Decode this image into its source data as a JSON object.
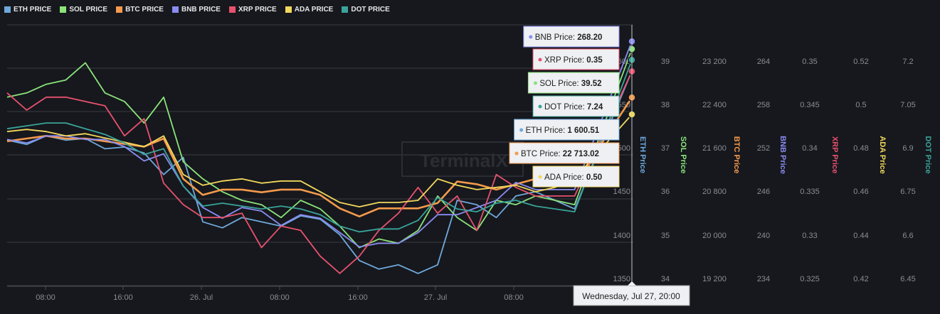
{
  "legend": [
    {
      "label": "ETH PRICE",
      "color": "#6fa8dc"
    },
    {
      "label": "SOL PRICE",
      "color": "#8be37a"
    },
    {
      "label": "BTC PRICE",
      "color": "#f59a4c"
    },
    {
      "label": "BNB PRICE",
      "color": "#8a8cf2"
    },
    {
      "label": "XRP PRICE",
      "color": "#e8516e"
    },
    {
      "label": "ADA PRICE",
      "color": "#f2d85c"
    },
    {
      "label": "DOT PRICE",
      "color": "#3aa39a"
    }
  ],
  "watermark": "TerminalX",
  "crosshair_label": "Wednesday, Jul 27, 20:00",
  "chart_data": {
    "type": "line",
    "x_ticks": [
      "08:00",
      "16:00",
      "26. Jul",
      "08:00",
      "16:00",
      "27. Jul",
      "08:00"
    ],
    "eth_axis_ticks": [
      "1350",
      "1400",
      "1450",
      "1500",
      "1550",
      "1600"
    ],
    "right_axes": [
      {
        "title": "ETH Price",
        "color": "#6fa8dc",
        "ticks": []
      },
      {
        "title": "SOL Price",
        "color": "#8be37a",
        "ticks": [
          "39",
          "38",
          "37",
          "36",
          "35",
          "34"
        ]
      },
      {
        "title": "BTC Price",
        "color": "#f59a4c",
        "ticks": [
          "23 200",
          "22 400",
          "21 600",
          "20 800",
          "20 000",
          "19 200"
        ]
      },
      {
        "title": "BNB Price",
        "color": "#8a8cf2",
        "ticks": [
          "264",
          "258",
          "252",
          "246",
          "240",
          "234"
        ]
      },
      {
        "title": "XRP Price",
        "color": "#e8516e",
        "ticks": [
          "0.35",
          "0.345",
          "0.34",
          "0.335",
          "0.33",
          "0.325"
        ]
      },
      {
        "title": "ADA Price",
        "color": "#f2d85c",
        "ticks": [
          "0.52",
          "0.5",
          "0.48",
          "0.46",
          "0.44",
          "0.42"
        ]
      },
      {
        "title": "DOT Price",
        "color": "#3aa39a",
        "ticks": [
          "7.2",
          "7.05",
          "6.9",
          "6.75",
          "6.6",
          "6.45"
        ]
      }
    ],
    "series": [
      {
        "name": "ETH Price",
        "color": "#6fa8dc",
        "values": [
          1520,
          1515,
          1525,
          1520,
          1522,
          1510,
          1512,
          1505,
          1480,
          1500,
          1425,
          1418,
          1430,
          1425,
          1420,
          1432,
          1428,
          1410,
          1380,
          1370,
          1375,
          1365,
          1375,
          1450,
          1445,
          1430,
          1455,
          1460,
          1450,
          1440,
          1600.51
        ]
      },
      {
        "name": "SOL Price",
        "color": "#8be37a",
        "values": [
          38.4,
          38.5,
          38.7,
          38.8,
          39.2,
          38.5,
          38.3,
          37.8,
          38.4,
          36.9,
          36.5,
          36.2,
          36.0,
          35.9,
          35.6,
          36.0,
          35.8,
          35.4,
          34.9,
          35.1,
          35.0,
          35.3,
          36.1,
          35.6,
          35.3,
          36.0,
          35.9,
          36.1,
          36.0,
          35.9,
          39.52
        ]
      },
      {
        "name": "BTC Price",
        "color": "#f59a4c",
        "values": [
          21900,
          21950,
          22000,
          21950,
          21950,
          21900,
          21850,
          21800,
          21950,
          21200,
          20900,
          21000,
          21000,
          20950,
          21000,
          21000,
          20900,
          20650,
          20500,
          20650,
          20650,
          20650,
          20750,
          21150,
          21100,
          21000,
          21100,
          21200,
          21150,
          21100,
          22713.02
        ]
      },
      {
        "name": "BNB Price",
        "color": "#8a8cf2",
        "values": [
          254.5,
          254.0,
          255.0,
          255.0,
          254.5,
          254.5,
          253.5,
          251.5,
          252.5,
          248.0,
          245.0,
          243.5,
          245.0,
          244.5,
          242.5,
          244.0,
          243.5,
          241.5,
          239.5,
          240.0,
          240.0,
          241.5,
          244.0,
          244.0,
          245.0,
          246.0,
          248.5,
          247.5,
          247.5,
          247.5,
          268.2
        ]
      },
      {
        "name": "XRP Price",
        "color": "#e8516e",
        "values": [
          0.3475,
          0.3455,
          0.347,
          0.347,
          0.3465,
          0.346,
          0.3425,
          0.3445,
          0.337,
          0.3345,
          0.333,
          0.333,
          0.3335,
          0.3295,
          0.332,
          0.3315,
          0.3285,
          0.3265,
          0.3285,
          0.3315,
          0.3335,
          0.3365,
          0.3335,
          0.3355,
          0.3315,
          0.338,
          0.3365,
          0.3355,
          0.3355,
          0.3355,
          0.35
        ]
      },
      {
        "name": "ADA Price",
        "color": "#f2d85c",
        "values": [
          0.492,
          0.493,
          0.492,
          0.49,
          0.491,
          0.489,
          0.487,
          0.485,
          0.49,
          0.472,
          0.467,
          0.469,
          0.47,
          0.468,
          0.469,
          0.469,
          0.464,
          0.459,
          0.457,
          0.459,
          0.459,
          0.46,
          0.47,
          0.467,
          0.465,
          0.466,
          0.467,
          0.464,
          0.466,
          0.47,
          0.5
        ]
      },
      {
        "name": "DOT Price",
        "color": "#3aa39a",
        "values": [
          7.0,
          7.01,
          7.02,
          7.02,
          7.0,
          6.98,
          6.95,
          6.91,
          6.93,
          6.8,
          6.73,
          6.74,
          6.73,
          6.72,
          6.73,
          6.72,
          6.7,
          6.66,
          6.64,
          6.65,
          6.65,
          6.68,
          6.76,
          6.72,
          6.71,
          6.74,
          6.75,
          6.73,
          6.72,
          6.71,
          7.24
        ]
      }
    ],
    "tooltip": [
      {
        "label": "BNB Price:",
        "value": "268.20",
        "color": "#8a8cf2"
      },
      {
        "label": "XRP Price:",
        "value": "0.35",
        "color": "#e8516e"
      },
      {
        "label": "SOL Price:",
        "value": "39.52",
        "color": "#8be37a"
      },
      {
        "label": "DOT Price:",
        "value": "7.24",
        "color": "#3aa39a"
      },
      {
        "label": "ETH Price:",
        "value": "1 600.51",
        "color": "#6fa8dc"
      },
      {
        "label": "BTC Price:",
        "value": "22 713.02",
        "color": "#f59a4c"
      },
      {
        "label": "ADA Price:",
        "value": "0.50",
        "color": "#f2d85c"
      }
    ],
    "grid": true,
    "legend_position": "top-left"
  }
}
